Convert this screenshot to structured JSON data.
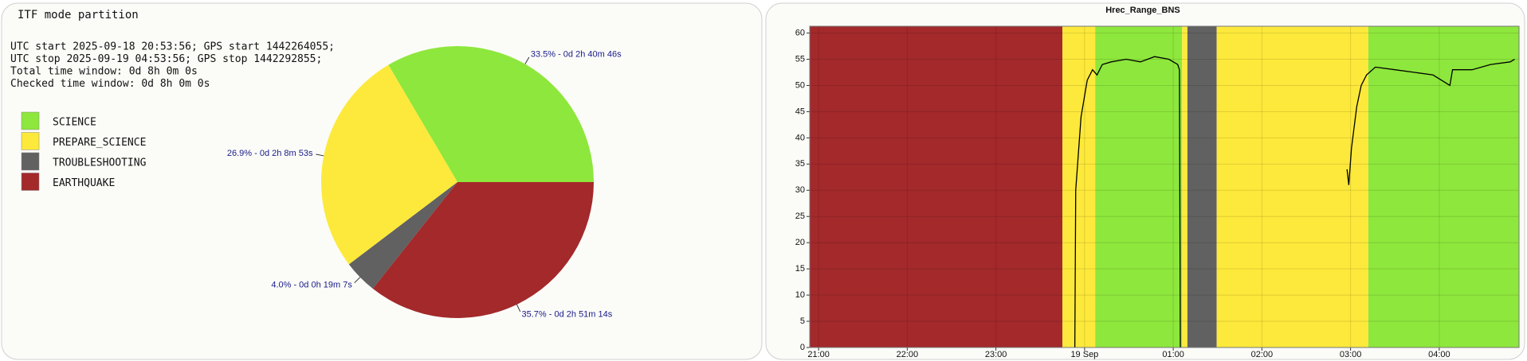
{
  "chart_data": [
    {
      "type": "pie",
      "title": "ITF mode partition",
      "annotations": [
        "UTC start 2025-09-18 20:53:56; GPS start 1442264055;",
        "UTC stop 2025-09-19 04:53:56; GPS stop 1442292855;",
        "Total time window: 0d 8h 0m 0s",
        "Checked time window: 0d 8h 0m 0s"
      ],
      "categories": [
        "SCIENCE",
        "PREPARE_SCIENCE",
        "TROUBLESHOOTING",
        "EARTHQUAKE"
      ],
      "values": [
        33.5,
        26.9,
        4.0,
        35.7
      ],
      "value_labels": [
        "33.5% - 0d 2h 40m 46s",
        "26.9% - 0d 2h 8m 53s",
        "4.0% - 0d 0h 19m 7s",
        "35.7% - 0d 2h 51m 14s"
      ],
      "colors": [
        "#8ee73c",
        "#fde93b",
        "#616161",
        "#a3292b"
      ]
    },
    {
      "type": "line",
      "title": "Hrec_Range_BNS",
      "x": [
        23.89,
        23.9,
        23.93,
        23.96,
        24.0,
        24.03,
        24.09,
        24.14,
        24.2,
        24.3,
        24.47,
        24.63,
        24.79,
        24.95,
        25.05,
        25.07,
        25.08,
        25.5,
        26.96,
        26.98,
        27.01,
        27.07,
        27.12,
        27.18,
        27.28,
        27.5,
        27.72,
        27.93,
        28.12,
        28.15,
        28.37,
        28.58,
        28.8,
        28.85
      ],
      "series": [
        {
          "name": "Hrec_Range_BNS",
          "color": "#000000",
          "values": [
            0,
            30,
            37,
            44,
            48,
            51,
            53,
            52,
            54,
            54.5,
            55,
            54.5,
            55.5,
            55,
            54,
            53,
            0,
            null,
            34,
            31,
            38,
            46,
            50,
            52,
            53.5,
            53,
            52.5,
            52,
            50,
            53,
            53,
            54,
            54.5,
            55
          ]
        }
      ],
      "bands": [
        {
          "start": 20.9,
          "end": 23.75,
          "color": "#a3292b"
        },
        {
          "start": 23.75,
          "end": 24.12,
          "color": "#fde93b"
        },
        {
          "start": 24.12,
          "end": 25.1,
          "color": "#8ee73c"
        },
        {
          "start": 25.1,
          "end": 25.16,
          "color": "#fde93b"
        },
        {
          "start": 25.16,
          "end": 25.49,
          "color": "#616161"
        },
        {
          "start": 25.49,
          "end": 27.2,
          "color": "#fde93b"
        },
        {
          "start": 27.2,
          "end": 28.9,
          "color": "#8ee73c"
        }
      ],
      "xlim": [
        20.9,
        28.9
      ],
      "xticks": [
        {
          "value": 21,
          "label": "21:00"
        },
        {
          "value": 22,
          "label": "22:00"
        },
        {
          "value": 23,
          "label": "23:00"
        },
        {
          "value": 24,
          "label": "19 Sep"
        },
        {
          "value": 25,
          "label": "01:00"
        },
        {
          "value": 26,
          "label": "02:00"
        },
        {
          "value": 27,
          "label": "03:00"
        },
        {
          "value": 28,
          "label": "04:00"
        }
      ],
      "ylim": [
        0,
        61.3
      ],
      "yticks": [
        0,
        5,
        10,
        15,
        20,
        25,
        30,
        35,
        40,
        45,
        50,
        55,
        60
      ],
      "grid": true
    }
  ]
}
